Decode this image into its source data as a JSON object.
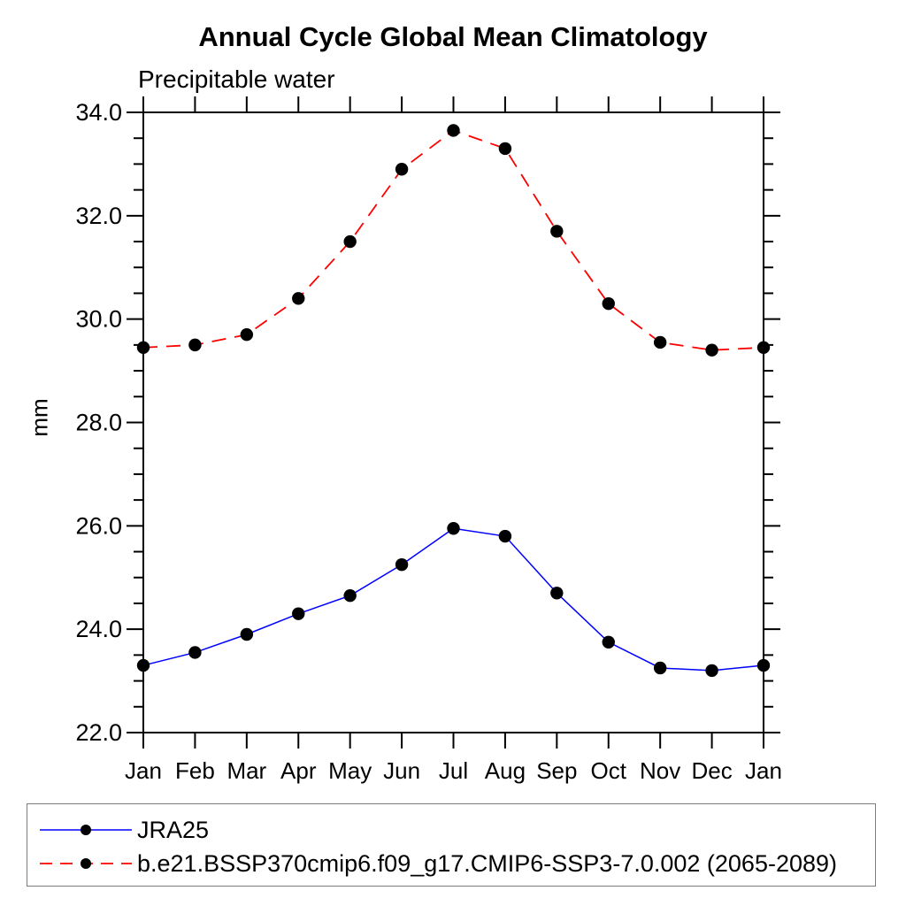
{
  "chart_data": {
    "type": "line",
    "title": "Annual Cycle Global Mean Climatology",
    "subtitle": "Precipitable water",
    "ylabel": "mm",
    "x_categories": [
      "Jan",
      "Feb",
      "Mar",
      "Apr",
      "May",
      "Jun",
      "Jul",
      "Aug",
      "Sep",
      "Oct",
      "Nov",
      "Dec",
      "Jan"
    ],
    "ylim": [
      22.0,
      34.0
    ],
    "ytick_values": [
      22,
      24,
      26,
      28,
      30,
      32,
      34
    ],
    "ytick_labels": [
      "22.0",
      "24.0",
      "26.0",
      "28.0",
      "30.0",
      "32.0",
      "34.0"
    ],
    "ytick_minor_step": 0.5,
    "grid": false,
    "legend_position": "bottom-left-box",
    "series": [
      {
        "name": "JRA25",
        "color": "#0000ff",
        "line_style": "solid",
        "marker": "filled-circle",
        "marker_color": "#000000",
        "values": [
          23.3,
          23.55,
          23.9,
          24.3,
          24.65,
          25.25,
          25.95,
          25.8,
          24.7,
          23.75,
          23.25,
          23.2,
          23.3
        ]
      },
      {
        "name": "b.e21.BSSP370cmip6.f09_g17.CMIP6-SSP3-7.0.002 (2065-2089)",
        "color": "#ff0000",
        "line_style": "dashed",
        "marker": "filled-circle",
        "marker_color": "#000000",
        "values": [
          29.45,
          29.5,
          29.7,
          30.4,
          31.5,
          32.9,
          33.65,
          33.3,
          31.7,
          30.3,
          29.55,
          29.4,
          29.45
        ]
      }
    ]
  },
  "colors": {
    "background": "#ffffff",
    "axis": "#000000",
    "text": "#000000",
    "legend_border": "#7c7c7c"
  }
}
